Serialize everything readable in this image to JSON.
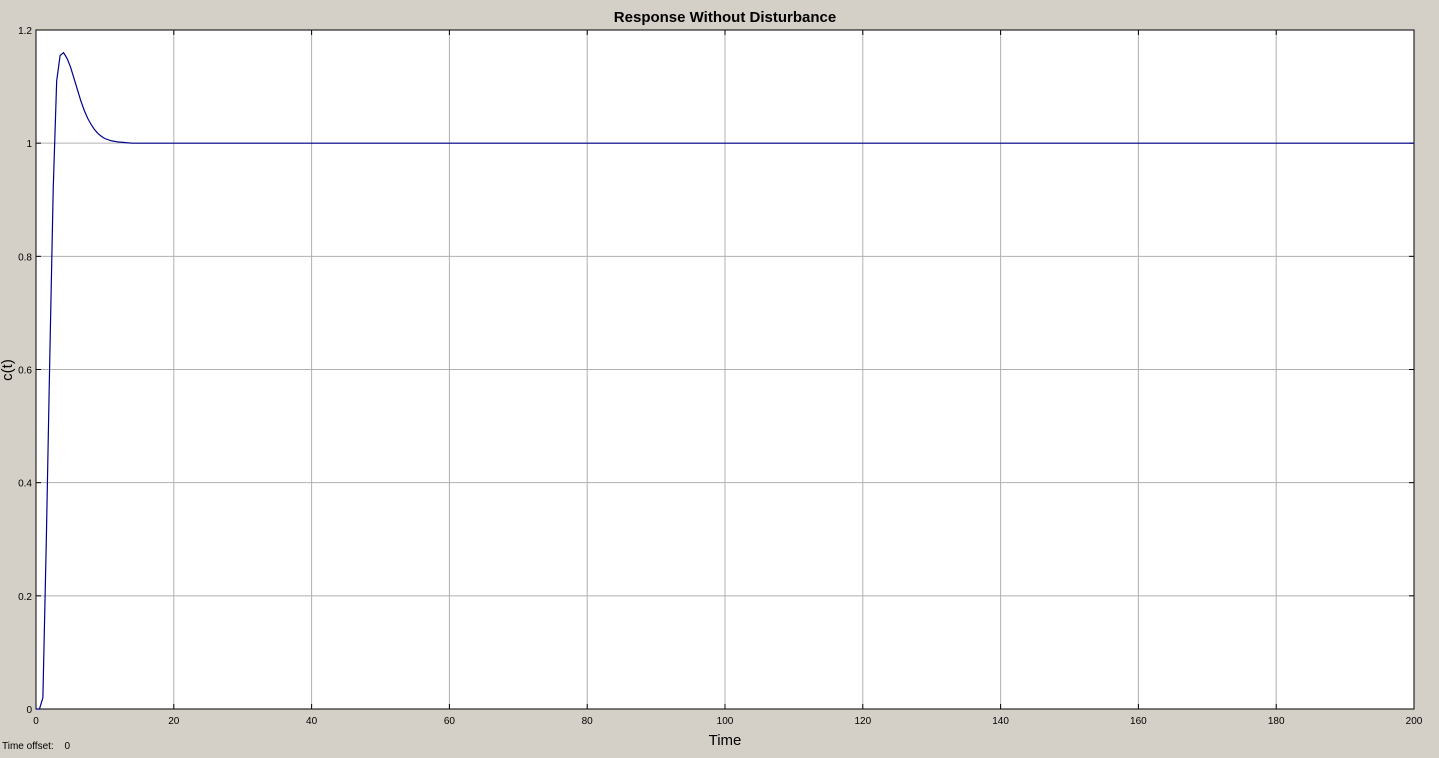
{
  "colors": {
    "figure_background": "#d4d0c8",
    "axes_background": "#ffffff",
    "grid": "#b0b0b0",
    "line": "#00008b"
  },
  "footer": {
    "time_offset_label": "Time offset:",
    "time_offset_value": "0"
  },
  "chart_data": {
    "type": "line",
    "title": "Response Without Disturbance",
    "xlabel": "Time",
    "ylabel": "c(t)",
    "xlim": [
      0,
      200
    ],
    "ylim": [
      0,
      1.2
    ],
    "grid": true,
    "xticks": [
      0,
      20,
      40,
      60,
      80,
      100,
      120,
      140,
      160,
      180,
      200
    ],
    "xtick_labels": [
      "0",
      "20",
      "40",
      "60",
      "80",
      "100",
      "120",
      "140",
      "160",
      "180",
      "200"
    ],
    "yticks": [
      0,
      0.2,
      0.4,
      0.6,
      0.8,
      1,
      1.2
    ],
    "ytick_labels": [
      "0",
      "0.2",
      "0.4",
      "0.6",
      "0.8",
      "1",
      "1.2"
    ],
    "series": [
      {
        "color": "#00008b",
        "x": [
          0,
          0.5,
          1.0,
          1.5,
          2.0,
          2.5,
          3.0,
          3.5,
          4.0,
          4.5,
          5.0,
          5.5,
          6.0,
          6.5,
          7.0,
          7.5,
          8.0,
          8.5,
          9.0,
          9.5,
          10,
          11,
          12,
          13,
          14,
          15,
          16,
          18,
          20,
          30,
          50,
          100,
          150,
          200
        ],
        "y": [
          0,
          0,
          0.02,
          0.3,
          0.62,
          0.92,
          1.11,
          1.155,
          1.16,
          1.15,
          1.135,
          1.115,
          1.095,
          1.075,
          1.058,
          1.044,
          1.033,
          1.024,
          1.017,
          1.012,
          1.008,
          1.004,
          1.002,
          1.001,
          1.0,
          1.0,
          1.0,
          1.0,
          1.0,
          1.0,
          1.0,
          1.0,
          1.0,
          1.0
        ]
      }
    ]
  }
}
